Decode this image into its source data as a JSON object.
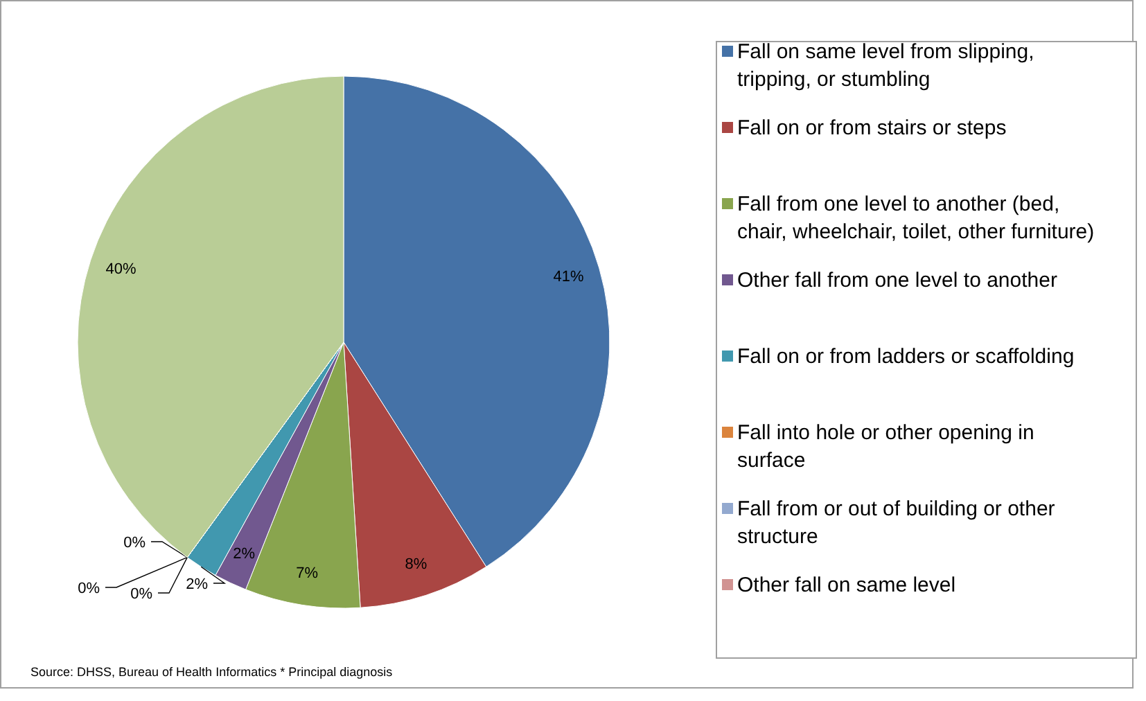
{
  "chart_data": {
    "type": "pie",
    "categories": [
      "Fall on same level from slipping, tripping, or stumbling",
      "Fall on or from stairs or steps",
      "Fall from one level to another (bed, chair, wheelchair, toilet, other furniture)",
      "Other fall from one level to another",
      "Fall on or from ladders or scaffolding",
      "Fall into hole or other opening in surface",
      "Fall from or out of building or other structure",
      "Other fall on same level",
      null
    ],
    "values": [
      41,
      8,
      7,
      2,
      2,
      0,
      0,
      0,
      40
    ],
    "colors": [
      "#4572a7",
      "#aa4643",
      "#89a54e",
      "#71588f",
      "#4198af",
      "#db843d",
      "#93a9cf",
      "#d19392",
      "#b9cd96"
    ],
    "value_labels": [
      "41%",
      "8%",
      "7%",
      "2%",
      "2%",
      "0%",
      "0%",
      "0%",
      "40%"
    ],
    "legend": "right",
    "annotations": [
      "Source: DHSS, Bureau of Health Informatics * Principal diagnosis"
    ]
  }
}
